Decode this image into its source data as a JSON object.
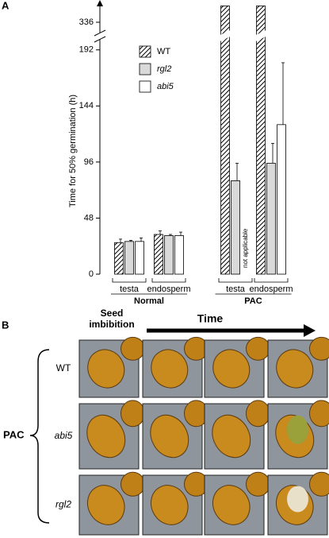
{
  "chart_data": {
    "type": "bar",
    "panel_label": "A",
    "y_label": "Time for 50% germination (h)",
    "categories": [
      "testa",
      "endosperm",
      "testa",
      "endosperm"
    ],
    "groups": [
      "Normal",
      "PAC"
    ],
    "series": [
      {
        "name": "WT",
        "color": "#000000",
        "pattern": "hatch",
        "values": [
          27,
          34,
          350,
          350
        ],
        "errors": [
          3,
          3,
          null,
          null
        ]
      },
      {
        "name": "rgl2",
        "color": "#d9d9d9",
        "values": [
          28,
          33,
          80,
          95
        ],
        "errors": [
          1,
          1,
          15,
          17
        ]
      },
      {
        "name": "abi5",
        "color": "#ffffff",
        "values": [
          28,
          33,
          null,
          128
        ],
        "errors": [
          3,
          3,
          null,
          53
        ]
      }
    ],
    "annotation": "not applicable",
    "ylim": [
      0,
      350
    ],
    "yticks": [
      0,
      48,
      96,
      144,
      192,
      336
    ],
    "axis_break": true
  },
  "panel_b": {
    "panel_label": "B",
    "column_label": "Seed imbibition",
    "arrow_label": "Time",
    "treatment": "PAC",
    "rows": [
      "WT",
      "abi5",
      "rgl2"
    ]
  }
}
